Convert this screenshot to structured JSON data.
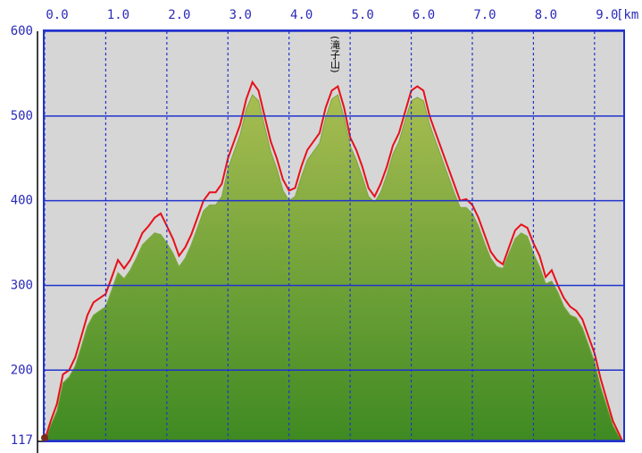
{
  "chart_data": {
    "type": "area",
    "x_unit": "[km",
    "annotation": "(滝子山)",
    "annotation_x": 4.75,
    "xlim": [
      0,
      9.47
    ],
    "ylim": [
      117,
      600
    ],
    "grid": true,
    "xticks": [
      {
        "value": 0,
        "label": "0.0"
      },
      {
        "value": 1,
        "label": "1.0"
      },
      {
        "value": 2,
        "label": "2.0"
      },
      {
        "value": 3,
        "label": "3.0"
      },
      {
        "value": 4,
        "label": "4.0"
      },
      {
        "value": 5,
        "label": "5.0"
      },
      {
        "value": 6,
        "label": "6.0"
      },
      {
        "value": 7,
        "label": "7.0"
      },
      {
        "value": 8,
        "label": "8.0"
      },
      {
        "value": 9,
        "label": "9.0"
      }
    ],
    "yticks": [
      117,
      200,
      300,
      400,
      500,
      600
    ],
    "x": [
      0,
      0.1,
      0.2,
      0.3,
      0.4,
      0.5,
      0.6,
      0.7,
      0.8,
      0.9,
      1.0,
      1.1,
      1.2,
      1.3,
      1.4,
      1.5,
      1.6,
      1.7,
      1.8,
      1.9,
      2.0,
      2.1,
      2.2,
      2.3,
      2.4,
      2.5,
      2.6,
      2.7,
      2.8,
      2.9,
      3.0,
      3.1,
      3.2,
      3.3,
      3.4,
      3.5,
      3.6,
      3.7,
      3.8,
      3.9,
      4.0,
      4.1,
      4.2,
      4.3,
      4.4,
      4.5,
      4.6,
      4.7,
      4.8,
      4.9,
      5.0,
      5.1,
      5.2,
      5.3,
      5.4,
      5.5,
      5.6,
      5.7,
      5.8,
      5.9,
      6.0,
      6.1,
      6.2,
      6.3,
      6.4,
      6.5,
      6.6,
      6.7,
      6.8,
      6.9,
      7.0,
      7.1,
      7.2,
      7.3,
      7.4,
      7.5,
      7.6,
      7.7,
      7.8,
      7.9,
      8.0,
      8.1,
      8.2,
      8.3,
      8.4,
      8.5,
      8.6,
      8.7,
      8.8,
      8.9,
      9.0,
      9.1,
      9.2,
      9.3,
      9.4,
      9.45
    ],
    "series": [
      {
        "name": "terrain",
        "color": "#7aa83a",
        "fill": true,
        "values": [
          117,
          135,
          152,
          185,
          192,
          205,
          228,
          252,
          265,
          270,
          275,
          295,
          315,
          308,
          318,
          332,
          348,
          355,
          362,
          360,
          350,
          338,
          322,
          332,
          348,
          368,
          388,
          395,
          395,
          405,
          438,
          458,
          478,
          508,
          525,
          518,
          488,
          458,
          438,
          412,
          400,
          405,
          428,
          448,
          458,
          468,
          498,
          520,
          525,
          498,
          465,
          448,
          428,
          405,
          398,
          410,
          430,
          455,
          470,
          495,
          518,
          522,
          518,
          490,
          470,
          450,
          430,
          410,
          392,
          392,
          385,
          370,
          350,
          332,
          322,
          320,
          338,
          355,
          362,
          358,
          338,
          322,
          302,
          305,
          292,
          275,
          265,
          262,
          250,
          230,
          210,
          180,
          158,
          135,
          122,
          117
        ]
      },
      {
        "name": "route",
        "color": "#e8101a",
        "fill": false,
        "values": [
          117,
          140,
          160,
          195,
          200,
          215,
          240,
          265,
          280,
          285,
          290,
          310,
          330,
          320,
          330,
          345,
          362,
          370,
          380,
          385,
          370,
          355,
          335,
          345,
          360,
          380,
          400,
          410,
          410,
          420,
          450,
          470,
          490,
          520,
          540,
          530,
          500,
          470,
          450,
          425,
          412,
          415,
          440,
          460,
          470,
          480,
          510,
          530,
          535,
          510,
          475,
          460,
          440,
          415,
          405,
          420,
          440,
          465,
          480,
          505,
          530,
          535,
          530,
          500,
          480,
          460,
          440,
          420,
          400,
          402,
          395,
          380,
          360,
          340,
          330,
          325,
          345,
          365,
          372,
          368,
          350,
          335,
          310,
          318,
          300,
          285,
          275,
          270,
          260,
          240,
          220,
          190,
          165,
          140,
          125,
          117
        ]
      }
    ]
  }
}
